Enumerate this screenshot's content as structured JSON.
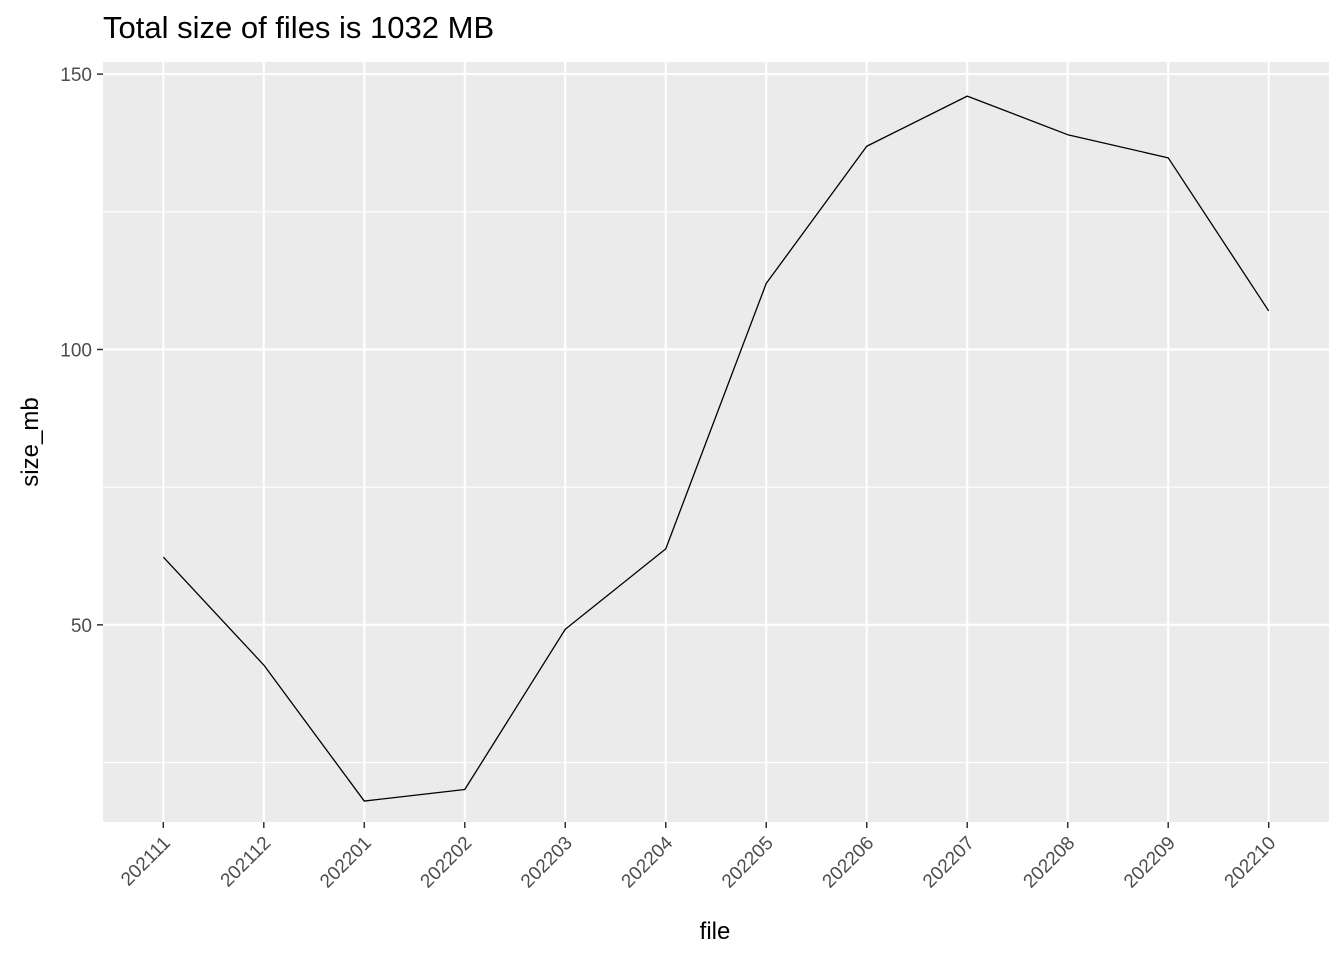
{
  "chart_data": {
    "type": "line",
    "title": "Total size of files is 1032 MB",
    "xlabel": "file",
    "ylabel": "size_mb",
    "categories": [
      "202111",
      "202112",
      "202201",
      "202202",
      "202203",
      "202204",
      "202205",
      "202206",
      "202207",
      "202208",
      "202209",
      "202210"
    ],
    "values": [
      62.3,
      42.7,
      18.0,
      20.1,
      49.2,
      63.8,
      112.0,
      136.9,
      146.0,
      139.0,
      134.8,
      107.0
    ],
    "yticks": [
      50,
      100,
      150
    ],
    "ylim": [
      14.2,
      152.2
    ],
    "grid": true,
    "line_color": "#000000",
    "panel_color": "#ebebeb",
    "grid_color": "#ffffff"
  }
}
